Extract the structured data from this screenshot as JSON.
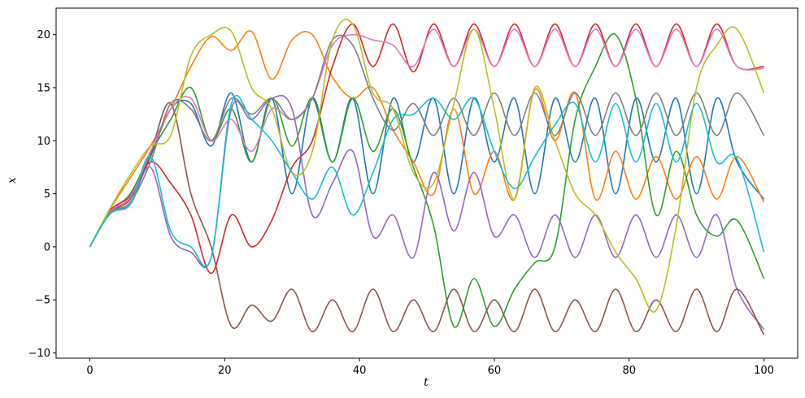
{
  "chart_data": {
    "type": "line",
    "title": "",
    "xlabel": "t",
    "ylabel": "x",
    "xlim": [
      -5,
      105
    ],
    "ylim": [
      -10.5,
      22.5
    ],
    "xticks": [
      0,
      20,
      40,
      60,
      80,
      100
    ],
    "yticks": [
      -10,
      -5,
      0,
      5,
      10,
      15,
      20
    ],
    "xtick_labels": [
      "0",
      "20",
      "40",
      "60",
      "80",
      "100"
    ],
    "ytick_labels": [
      "−10",
      "−5",
      "0",
      "5",
      "10",
      "15",
      "20"
    ],
    "grid": false,
    "legend": "none",
    "x": [
      0,
      3,
      6,
      9,
      12,
      15,
      18,
      21,
      24,
      27,
      30,
      33,
      36,
      39,
      42,
      45,
      48,
      51,
      54,
      57,
      60,
      63,
      66,
      69,
      72,
      75,
      78,
      81,
      84,
      87,
      90,
      93,
      96,
      100
    ],
    "series": [
      {
        "color": "#1f77b4",
        "values": [
          0,
          3.2,
          4.5,
          8.5,
          13,
          13.5,
          9.5,
          14.5,
          8,
          14,
          5,
          14,
          8,
          14,
          5,
          14,
          8,
          14,
          5,
          14,
          8,
          14,
          5,
          14,
          8,
          14,
          5,
          14,
          8,
          14,
          5,
          14,
          8,
          4.5
        ]
      },
      {
        "color": "#ff7f0e",
        "values": [
          0,
          3.5,
          6.5,
          9.5,
          13,
          17,
          19.8,
          18.5,
          20.3,
          15.8,
          19.5,
          20,
          16,
          14,
          15,
          11,
          8,
          5,
          13,
          5,
          9,
          4.5,
          14.8,
          10,
          14.5,
          4.5,
          9,
          4.5,
          8.5,
          4.5,
          8.5,
          4.5,
          8.5,
          4.2
        ]
      },
      {
        "color": "#2ca02c",
        "values": [
          0,
          3.3,
          5,
          8.8,
          12,
          15,
          10,
          13,
          8,
          14,
          9.5,
          14,
          8,
          14,
          9,
          13,
          7.5,
          2,
          -7.5,
          -3,
          -7.5,
          -4,
          -1.5,
          0,
          12,
          17,
          20,
          14,
          3,
          9,
          3,
          1,
          2.5,
          -3
        ]
      },
      {
        "color": "#d62728",
        "values": [
          0,
          3.4,
          4.8,
          8,
          6,
          3,
          -2.5,
          3,
          0,
          2.5,
          7.5,
          10,
          17,
          21,
          17,
          21,
          16.5,
          21,
          17,
          21,
          17,
          21,
          17,
          21,
          17,
          21,
          17,
          21,
          17,
          21,
          17,
          21,
          17,
          17
        ]
      },
      {
        "color": "#9467bd",
        "values": [
          0,
          3.2,
          4,
          7.5,
          1,
          -0.5,
          -1,
          13,
          12,
          14,
          13,
          3,
          6,
          9,
          1,
          3,
          -1,
          7,
          1.5,
          7,
          1,
          3,
          -1,
          3,
          -1,
          3,
          -1,
          3,
          -1,
          3,
          -1,
          3,
          -4,
          -7.8
        ]
      },
      {
        "color": "#8c564b",
        "values": [
          0,
          3.3,
          4.5,
          8.8,
          13.5,
          5,
          0,
          -7.5,
          -5.5,
          -7,
          -4,
          -8,
          -5,
          -8,
          -4,
          -8,
          -5,
          -8,
          -4,
          -8,
          -5,
          -8,
          -4,
          -8,
          -5,
          -8,
          -4,
          -8,
          -5,
          -8,
          -4,
          -8,
          -4,
          -8.3
        ]
      },
      {
        "color": "#e377c2",
        "values": [
          0,
          3.3,
          4.7,
          9,
          13,
          14,
          10,
          12,
          9,
          13,
          12,
          14,
          19,
          20,
          19.5,
          19,
          17,
          20.5,
          17,
          20.5,
          17,
          20.5,
          17,
          20.5,
          17,
          20.5,
          17,
          20.5,
          17,
          20.5,
          17,
          20.5,
          17,
          16.8
        ]
      },
      {
        "color": "#7f7f7f",
        "values": [
          0,
          3.2,
          4.2,
          8,
          13.5,
          13,
          10,
          14,
          12.5,
          14,
          12,
          14,
          19.5,
          19,
          14,
          11,
          13.5,
          10.5,
          14,
          10.5,
          14.5,
          10.5,
          14.5,
          10.5,
          14.5,
          10.5,
          14.5,
          10.5,
          14.5,
          10.5,
          14.5,
          10.5,
          14.5,
          10.5
        ]
      },
      {
        "color": "#bcbd22",
        "values": [
          0,
          3.6,
          6.8,
          9.5,
          10.5,
          18,
          20,
          20.3,
          15,
          13,
          7,
          9,
          19.5,
          21,
          14.5,
          13,
          7,
          6,
          13.5,
          20.5,
          13,
          4.5,
          15,
          10,
          5,
          3,
          -0.5,
          -3,
          -6,
          2,
          15,
          19,
          20.5,
          14.5
        ]
      },
      {
        "color": "#17becf",
        "values": [
          0,
          3.1,
          4,
          8.5,
          1.5,
          0,
          -1,
          13.5,
          12,
          10,
          7,
          4.5,
          7.5,
          3,
          7,
          12,
          12.5,
          14,
          12,
          14,
          9,
          5.5,
          8.5,
          11.5,
          13.5,
          8,
          13.5,
          8,
          13.5,
          8,
          13.5,
          8,
          8.3,
          -0.5
        ]
      }
    ]
  }
}
